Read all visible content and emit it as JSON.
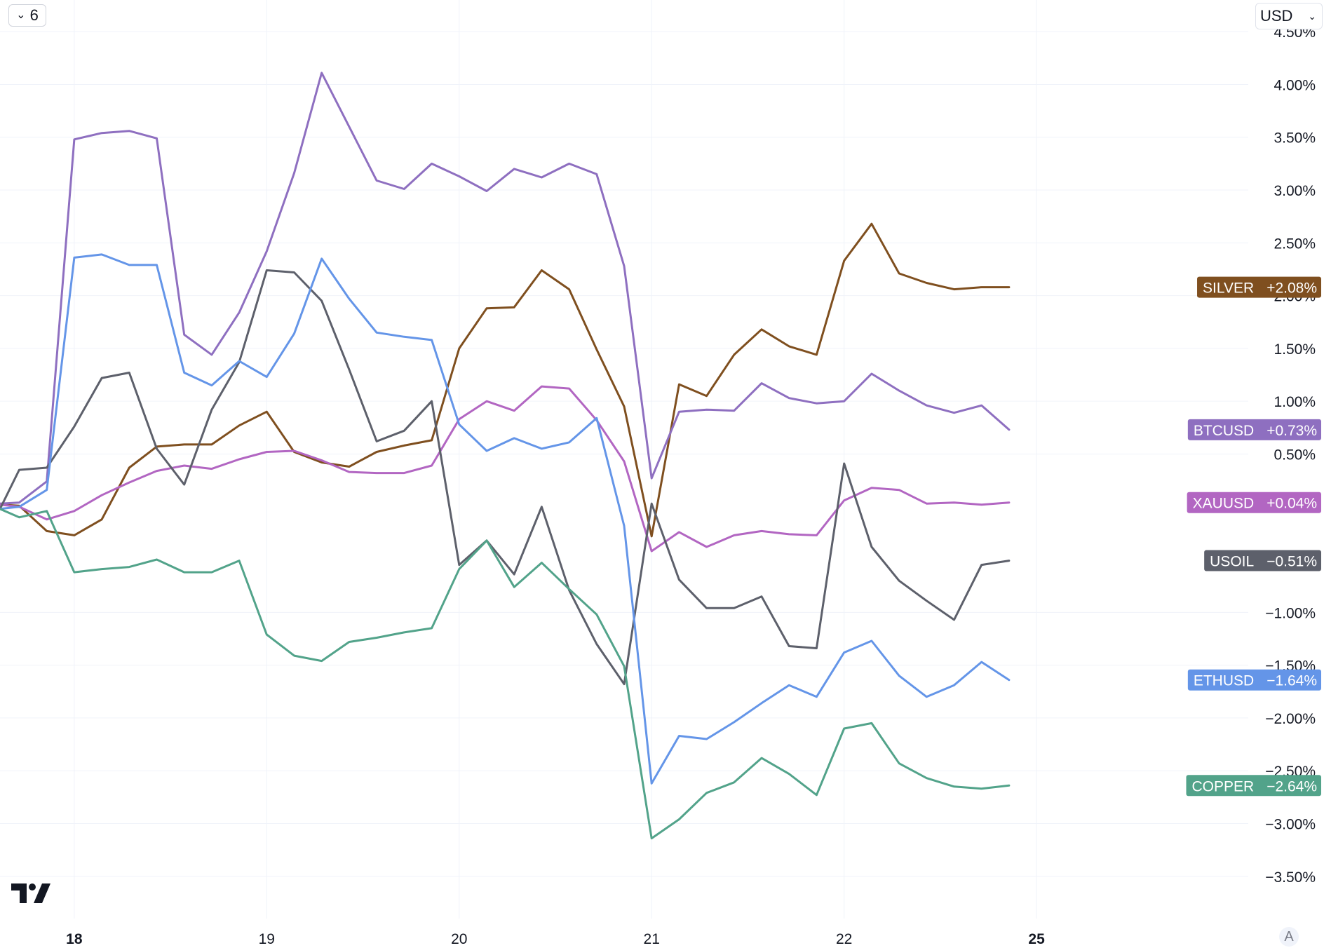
{
  "toolbar": {
    "collapse_count": "6",
    "currency": "USD",
    "auto_scale_label": "A"
  },
  "chart_data": {
    "type": "line",
    "title": "",
    "xlabel": "",
    "ylabel": "",
    "x_ticks": [
      {
        "value": 0,
        "label": "18"
      },
      {
        "value": 7,
        "label": "19"
      },
      {
        "value": 14,
        "label": "20"
      },
      {
        "value": 21,
        "label": "21"
      },
      {
        "value": 28,
        "label": "22"
      },
      {
        "value": 35,
        "label": "25"
      }
    ],
    "xlim": [
      -2.7,
      42.7
    ],
    "y_ticks": [
      {
        "value": 4.5,
        "label": "4.50%"
      },
      {
        "value": 4.0,
        "label": "4.00%"
      },
      {
        "value": 3.5,
        "label": "3.50%"
      },
      {
        "value": 3.0,
        "label": "3.00%"
      },
      {
        "value": 2.5,
        "label": "2.50%"
      },
      {
        "value": 2.0,
        "label": "2.00%"
      },
      {
        "value": 1.5,
        "label": "1.50%"
      },
      {
        "value": 1.0,
        "label": "1.00%"
      },
      {
        "value": 0.5,
        "label": "0.50%"
      },
      {
        "value": -1.0,
        "label": "−1.00%"
      },
      {
        "value": -1.5,
        "label": "−1.50%"
      },
      {
        "value": -2.0,
        "label": "−2.00%"
      },
      {
        "value": -2.5,
        "label": "−2.50%"
      },
      {
        "value": -3.0,
        "label": "−3.00%"
      },
      {
        "value": -3.5,
        "label": "−3.50%"
      }
    ],
    "ylim": [
      -3.9,
      4.8
    ],
    "grid": true,
    "series": [
      {
        "name": "SILVER",
        "label": "+2.08%",
        "color": "#7f4f1f",
        "x": [
          -2.7,
          -2,
          -1,
          0,
          1,
          2,
          3,
          4,
          5,
          6,
          7,
          8,
          9,
          10,
          11,
          12,
          13,
          14,
          15,
          16,
          17,
          18,
          19,
          20,
          21,
          22,
          23,
          24,
          25,
          26,
          27,
          28,
          29,
          30,
          31,
          32,
          33,
          34
        ],
        "y": [
          0.02,
          0.01,
          -0.23,
          -0.27,
          -0.12,
          0.37,
          0.57,
          0.59,
          0.59,
          0.77,
          0.9,
          0.52,
          0.42,
          0.38,
          0.52,
          0.58,
          0.63,
          1.5,
          1.88,
          1.89,
          2.24,
          2.06,
          1.49,
          0.95,
          -0.28,
          1.16,
          1.05,
          1.44,
          1.68,
          1.52,
          1.44,
          2.33,
          2.68,
          2.21,
          2.12,
          2.06,
          2.08,
          2.08
        ]
      },
      {
        "name": "BTCUSD",
        "label": "+0.73%",
        "color": "#8e6fc0",
        "x": [
          -2.7,
          -2,
          -1,
          0,
          1,
          2,
          3,
          4,
          5,
          6,
          7,
          8,
          9,
          10,
          11,
          12,
          13,
          14,
          15,
          16,
          17,
          18,
          19,
          20,
          21,
          22,
          23,
          24,
          25,
          26,
          27,
          28,
          29,
          30,
          31,
          32,
          33,
          34
        ],
        "y": [
          0.03,
          0.04,
          0.24,
          3.48,
          3.54,
          3.56,
          3.49,
          1.63,
          1.44,
          1.84,
          2.42,
          3.16,
          4.11,
          3.6,
          3.09,
          3.01,
          3.25,
          3.13,
          2.99,
          3.2,
          3.12,
          3.25,
          3.15,
          2.28,
          0.27,
          0.9,
          0.92,
          0.91,
          1.17,
          1.03,
          0.98,
          1.0,
          1.26,
          1.1,
          0.96,
          0.89,
          0.96,
          0.73
        ]
      },
      {
        "name": "XAUUSD",
        "label": "+0.04%",
        "color": "#b266c2",
        "x": [
          -2.7,
          -2,
          -1,
          0,
          1,
          2,
          3,
          4,
          5,
          6,
          7,
          8,
          9,
          10,
          11,
          12,
          13,
          14,
          15,
          16,
          17,
          18,
          19,
          20,
          21,
          22,
          23,
          24,
          25,
          26,
          27,
          28,
          29,
          30,
          31,
          32,
          33,
          34
        ],
        "y": [
          0.02,
          0.0,
          -0.12,
          -0.04,
          0.11,
          0.23,
          0.34,
          0.39,
          0.36,
          0.45,
          0.52,
          0.53,
          0.44,
          0.33,
          0.32,
          0.32,
          0.39,
          0.83,
          1.0,
          0.91,
          1.14,
          1.12,
          0.82,
          0.43,
          -0.42,
          -0.24,
          -0.38,
          -0.27,
          -0.23,
          -0.26,
          -0.27,
          0.06,
          0.18,
          0.16,
          0.03,
          0.04,
          0.02,
          0.04
        ]
      },
      {
        "name": "USOIL",
        "label": "−0.51%",
        "color": "#5d606b",
        "x": [
          -2.7,
          -2,
          -1,
          0,
          1,
          2,
          3,
          4,
          5,
          6,
          7,
          8,
          9,
          10,
          11,
          12,
          13,
          14,
          15,
          16,
          17,
          18,
          19,
          20,
          21,
          22,
          23,
          24,
          25,
          26,
          27,
          28,
          29,
          30,
          31,
          32,
          33,
          34
        ],
        "y": [
          -0.02,
          0.35,
          0.37,
          0.76,
          1.22,
          1.27,
          0.55,
          0.21,
          0.92,
          1.37,
          2.24,
          2.22,
          1.95,
          1.3,
          0.62,
          0.72,
          1.0,
          -0.55,
          -0.32,
          -0.64,
          0.0,
          -0.79,
          -1.3,
          -1.68,
          0.03,
          -0.69,
          -0.96,
          -0.96,
          -0.85,
          -1.32,
          -1.34,
          0.41,
          -0.38,
          -0.7,
          -0.89,
          -1.07,
          -0.55,
          -0.51
        ]
      },
      {
        "name": "ETHUSD",
        "label": "−1.64%",
        "color": "#6495e8",
        "x": [
          -2.7,
          -2,
          -1,
          0,
          1,
          2,
          3,
          4,
          5,
          6,
          7,
          8,
          9,
          10,
          11,
          12,
          13,
          14,
          15,
          16,
          17,
          18,
          19,
          20,
          21,
          22,
          23,
          24,
          25,
          26,
          27,
          28,
          29,
          30,
          31,
          32,
          33,
          34
        ],
        "y": [
          -0.02,
          0.0,
          0.16,
          2.36,
          2.39,
          2.29,
          2.29,
          1.27,
          1.15,
          1.38,
          1.23,
          1.64,
          2.35,
          1.97,
          1.65,
          1.61,
          1.58,
          0.78,
          0.53,
          0.65,
          0.55,
          0.61,
          0.84,
          -0.18,
          -2.62,
          -2.17,
          -2.2,
          -2.04,
          -1.86,
          -1.69,
          -1.8,
          -1.38,
          -1.27,
          -1.6,
          -1.8,
          -1.69,
          -1.47,
          -1.64
        ]
      },
      {
        "name": "COPPER",
        "label": "−2.64%",
        "color": "#52a38a",
        "x": [
          -2.7,
          -2,
          -1,
          0,
          1,
          2,
          3,
          4,
          5,
          6,
          7,
          8,
          9,
          10,
          11,
          12,
          13,
          14,
          15,
          16,
          17,
          18,
          19,
          20,
          21,
          22,
          23,
          24,
          25,
          26,
          27,
          28,
          29,
          30,
          31,
          32,
          33,
          34
        ],
        "y": [
          -0.02,
          -0.1,
          -0.04,
          -0.62,
          -0.59,
          -0.57,
          -0.5,
          -0.62,
          -0.62,
          -0.51,
          -1.21,
          -1.41,
          -1.46,
          -1.28,
          -1.24,
          -1.19,
          -1.15,
          -0.59,
          -0.32,
          -0.76,
          -0.53,
          -0.78,
          -1.02,
          -1.51,
          -3.14,
          -2.96,
          -2.71,
          -2.61,
          -2.38,
          -2.53,
          -2.73,
          -2.1,
          -2.05,
          -2.43,
          -2.57,
          -2.65,
          -2.67,
          -2.64
        ]
      }
    ]
  }
}
